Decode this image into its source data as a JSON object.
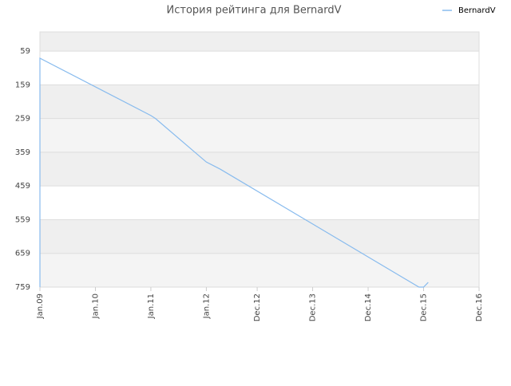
{
  "chart_data": {
    "type": "line",
    "title": "История рейтинга для BernardV",
    "x": [
      "2009-01",
      "2009-01",
      "2011-01",
      "2011-02",
      "2012-01",
      "2012-04",
      "2015-11",
      "2015-12",
      "2016-01"
    ],
    "series": [
      {
        "name": "BernardV",
        "color": "#88bbee",
        "values": [
          759,
          80,
          250,
          259,
          388,
          409,
          759,
          759,
          745
        ]
      }
    ],
    "xlim": [
      "2009-01",
      "2016-12"
    ],
    "xticks": [
      {
        "value": "2009-01",
        "label": "Jan.09"
      },
      {
        "value": "2010-01",
        "label": "Jan.10"
      },
      {
        "value": "2011-01",
        "label": "Jan.11"
      },
      {
        "value": "2012-01",
        "label": "Jan.12"
      },
      {
        "value": "2012-12",
        "label": "Dec.12"
      },
      {
        "value": "2013-12",
        "label": "Dec.13"
      },
      {
        "value": "2014-12",
        "label": "Dec.14"
      },
      {
        "value": "2015-12",
        "label": "Dec.15"
      },
      {
        "value": "2016-12",
        "label": "Dec.16"
      }
    ],
    "ylim": [
      759,
      2
    ],
    "yticks": [
      59,
      159,
      259,
      359,
      459,
      559,
      659,
      759
    ],
    "grid": true,
    "legend": "top-right"
  }
}
